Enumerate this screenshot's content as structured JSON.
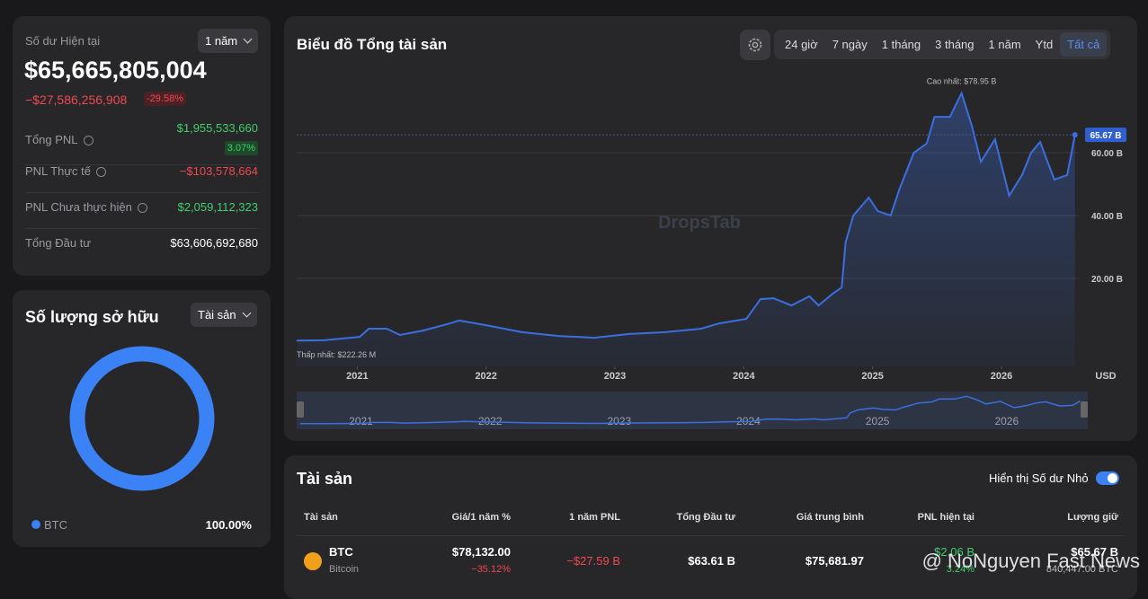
{
  "balance": {
    "label": "Số dư Hiện tại",
    "period": "1 năm",
    "value": "$65,665,805,004",
    "change": "−$27,586,256,908",
    "change_pct": "-29.58%",
    "stats": [
      {
        "label": "Tổng PNL",
        "value": "$1,955,533,660",
        "badge": "3.07%",
        "color": "#3fcf6a",
        "info": true
      },
      {
        "label": "PNL Thực tế",
        "value": "−$103,578,664",
        "color": "#f0484f",
        "info": true
      },
      {
        "label": "PNL Chưa thực hiện",
        "value": "$2,059,112,323",
        "color": "#3fcf6a",
        "info": true
      },
      {
        "label": "Tổng Đầu tư",
        "value": "$63,606,692,680",
        "color": "#ffffff",
        "info": false
      }
    ]
  },
  "holdings": {
    "title": "Số lượng sở hữu",
    "filter": "Tài sản",
    "items": [
      {
        "name": "BTC",
        "value": 100,
        "value_label": "100.00%",
        "color": "#3b82f6"
      }
    ]
  },
  "chart_data": {
    "type": "area",
    "title": "Biểu đồ Tổng tài sản",
    "ranges": [
      "24 giờ",
      "7 ngày",
      "1 tháng",
      "3 tháng",
      "1 năm",
      "Ytd",
      "Tất cả"
    ],
    "active_range": 6,
    "watermark": "DropsTab",
    "unit": "USD",
    "high_label": "Cao nhất: $78.95 B",
    "low_label": "Thấp nhất: $222.26 M",
    "current": {
      "value": 65.67,
      "label": "65.67 B"
    },
    "color": "#3b6fe0",
    "grid": true,
    "x": [
      2020.53,
      2020.74,
      2021.02,
      2021.09,
      2021.23,
      2021.33,
      2021.51,
      2021.72,
      2021.79,
      2022.0,
      2022.28,
      2022.56,
      2022.84,
      2023.11,
      2023.39,
      2023.67,
      2023.81,
      2024.02,
      2024.13,
      2024.23,
      2024.37,
      2024.51,
      2024.58,
      2024.69,
      2024.76,
      2024.79,
      2024.85,
      2024.97,
      2025.04,
      2025.14,
      2025.21,
      2025.32,
      2025.42,
      2025.48,
      2025.6,
      2025.69,
      2025.77,
      2025.84,
      2025.95,
      2026.06,
      2026.16,
      2026.23,
      2026.3,
      2026.41,
      2026.51,
      2026.57
    ],
    "series": [
      {
        "name": "Tổng tài sản",
        "color": "#3b6fe0",
        "values": [
          0.22,
          0.3,
          1.4,
          4,
          4,
          2,
          3.4,
          5.7,
          6.6,
          5.1,
          2.9,
          1.7,
          1.1,
          2.3,
          2.9,
          4,
          5.7,
          7.1,
          13.4,
          13.7,
          11.4,
          14.3,
          11.4,
          15.1,
          17.1,
          31.4,
          40,
          45.7,
          41.4,
          40,
          48.6,
          60,
          62.9,
          71.4,
          71.4,
          78.95,
          68.6,
          57.1,
          64.3,
          46.3,
          52.9,
          60,
          63.4,
          51.4,
          52.9,
          65.67
        ]
      }
    ],
    "xlim": [
      2020.53,
      2026.6
    ],
    "xticks": [
      2021,
      2022,
      2023,
      2024,
      2025,
      2026
    ],
    "ylim": [
      -8,
      85
    ],
    "yticks": [
      {
        "value": 20,
        "label": "20.00 B"
      },
      {
        "value": 40,
        "label": "40.00 B"
      },
      {
        "value": 60,
        "label": "60.00 B"
      }
    ]
  },
  "assets": {
    "title": "Tài sản",
    "toggle_label": "Hiển thị Số dư Nhỏ",
    "toggle_on": true,
    "columns": [
      "Tài sản",
      "Giá/1 năm %",
      "1 năm PNL",
      "Tổng Đầu tư",
      "Giá trung bình",
      "PNL hiện tại",
      "Lượng giữ"
    ],
    "rows": [
      {
        "symbol": "BTC",
        "name": "Bitcoin",
        "price": "$78,132.00",
        "price_pct": "−35.12%",
        "pnl_1y": "−$27.59 B",
        "invested": "$63.61 B",
        "avg_price": "$75,681.97",
        "pnl_now": "$2.06 B",
        "pnl_now_pct": "3.24%",
        "holding": "$65.67 B",
        "holding_qty": "840,447.00 BTC"
      }
    ]
  },
  "watermark": "@ NoNguyen Fast News"
}
